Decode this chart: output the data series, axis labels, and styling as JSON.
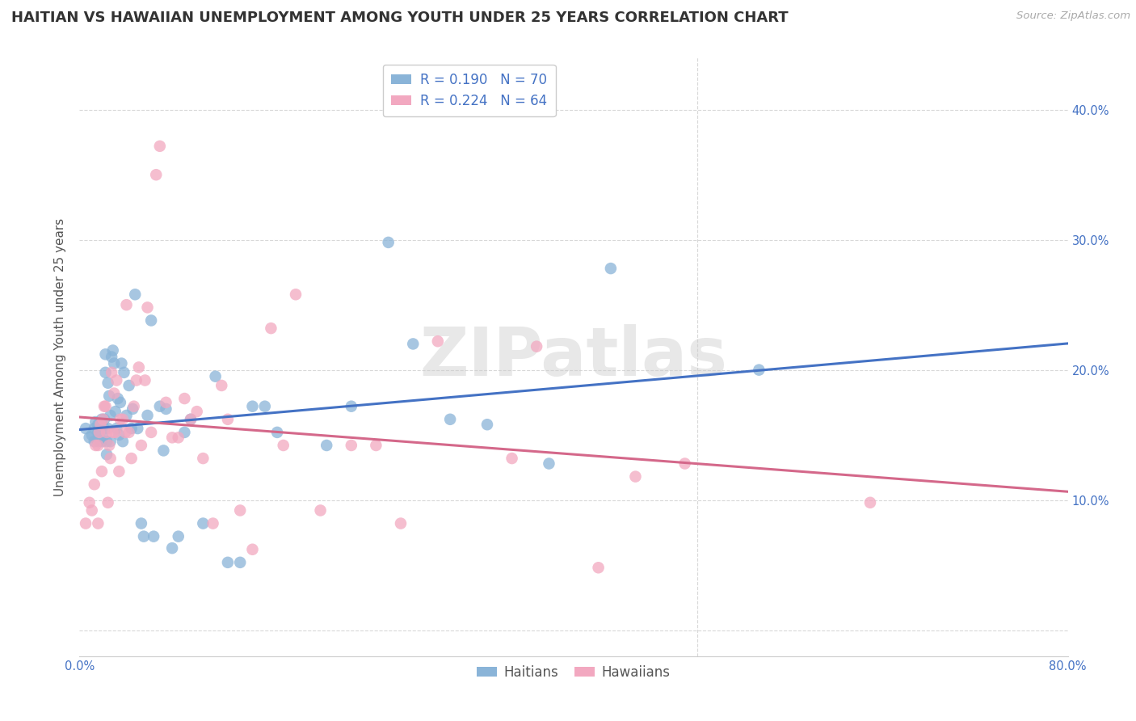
{
  "title": "HAITIAN VS HAWAIIAN UNEMPLOYMENT AMONG YOUTH UNDER 25 YEARS CORRELATION CHART",
  "source": "Source: ZipAtlas.com",
  "ylabel": "Unemployment Among Youth under 25 years",
  "xlim": [
    0.0,
    0.8
  ],
  "ylim": [
    -0.02,
    0.44
  ],
  "plot_ylim": [
    -0.02,
    0.44
  ],
  "haitians_color": "#8ab4d8",
  "hawaiians_color": "#f2a8c0",
  "haitians_line_color": "#4472c4",
  "hawaiians_line_color": "#d4688a",
  "R_haitian": 0.19,
  "N_haitian": 70,
  "R_hawaiian": 0.224,
  "N_hawaiian": 64,
  "haitians_x": [
    0.005,
    0.008,
    0.01,
    0.012,
    0.012,
    0.013,
    0.015,
    0.015,
    0.015,
    0.016,
    0.017,
    0.018,
    0.018,
    0.019,
    0.02,
    0.02,
    0.021,
    0.021,
    0.022,
    0.022,
    0.023,
    0.023,
    0.024,
    0.025,
    0.025,
    0.026,
    0.027,
    0.028,
    0.029,
    0.03,
    0.031,
    0.032,
    0.033,
    0.034,
    0.035,
    0.036,
    0.038,
    0.04,
    0.042,
    0.043,
    0.045,
    0.047,
    0.05,
    0.052,
    0.055,
    0.058,
    0.06,
    0.065,
    0.068,
    0.07,
    0.075,
    0.08,
    0.085,
    0.09,
    0.1,
    0.11,
    0.12,
    0.13,
    0.14,
    0.15,
    0.16,
    0.2,
    0.22,
    0.25,
    0.27,
    0.3,
    0.33,
    0.38,
    0.43,
    0.55
  ],
  "haitians_y": [
    0.155,
    0.148,
    0.15,
    0.145,
    0.155,
    0.16,
    0.145,
    0.152,
    0.158,
    0.148,
    0.155,
    0.145,
    0.162,
    0.148,
    0.155,
    0.162,
    0.198,
    0.212,
    0.145,
    0.135,
    0.155,
    0.19,
    0.18,
    0.145,
    0.165,
    0.21,
    0.215,
    0.205,
    0.168,
    0.155,
    0.178,
    0.15,
    0.175,
    0.205,
    0.145,
    0.198,
    0.165,
    0.188,
    0.155,
    0.17,
    0.258,
    0.155,
    0.082,
    0.072,
    0.165,
    0.238,
    0.072,
    0.172,
    0.138,
    0.17,
    0.063,
    0.072,
    0.152,
    0.162,
    0.082,
    0.195,
    0.052,
    0.052,
    0.172,
    0.172,
    0.152,
    0.142,
    0.172,
    0.298,
    0.22,
    0.162,
    0.158,
    0.128,
    0.278,
    0.2
  ],
  "hawaiians_x": [
    0.005,
    0.008,
    0.01,
    0.012,
    0.013,
    0.015,
    0.015,
    0.016,
    0.017,
    0.018,
    0.019,
    0.02,
    0.021,
    0.022,
    0.023,
    0.024,
    0.025,
    0.026,
    0.027,
    0.028,
    0.029,
    0.03,
    0.032,
    0.033,
    0.035,
    0.037,
    0.038,
    0.04,
    0.042,
    0.044,
    0.046,
    0.048,
    0.05,
    0.053,
    0.055,
    0.058,
    0.062,
    0.065,
    0.07,
    0.075,
    0.08,
    0.085,
    0.09,
    0.095,
    0.1,
    0.108,
    0.115,
    0.12,
    0.13,
    0.14,
    0.155,
    0.165,
    0.175,
    0.195,
    0.22,
    0.24,
    0.26,
    0.29,
    0.35,
    0.37,
    0.42,
    0.45,
    0.49,
    0.64
  ],
  "hawaiians_y": [
    0.082,
    0.098,
    0.092,
    0.112,
    0.142,
    0.082,
    0.142,
    0.152,
    0.158,
    0.122,
    0.162,
    0.172,
    0.172,
    0.152,
    0.098,
    0.142,
    0.132,
    0.198,
    0.152,
    0.182,
    0.152,
    0.192,
    0.122,
    0.162,
    0.162,
    0.152,
    0.25,
    0.152,
    0.132,
    0.172,
    0.192,
    0.202,
    0.142,
    0.192,
    0.248,
    0.152,
    0.35,
    0.372,
    0.175,
    0.148,
    0.148,
    0.178,
    0.162,
    0.168,
    0.132,
    0.082,
    0.188,
    0.162,
    0.092,
    0.062,
    0.232,
    0.142,
    0.258,
    0.092,
    0.142,
    0.142,
    0.082,
    0.222,
    0.132,
    0.218,
    0.048,
    0.118,
    0.128,
    0.098
  ],
  "background_color": "#ffffff",
  "grid_color": "#d8d8d8",
  "watermark_text": "ZIPatlas",
  "watermark_color": "#cccccc",
  "title_fontsize": 13,
  "axis_label_fontsize": 11,
  "tick_fontsize": 10.5,
  "legend_fontsize": 12
}
